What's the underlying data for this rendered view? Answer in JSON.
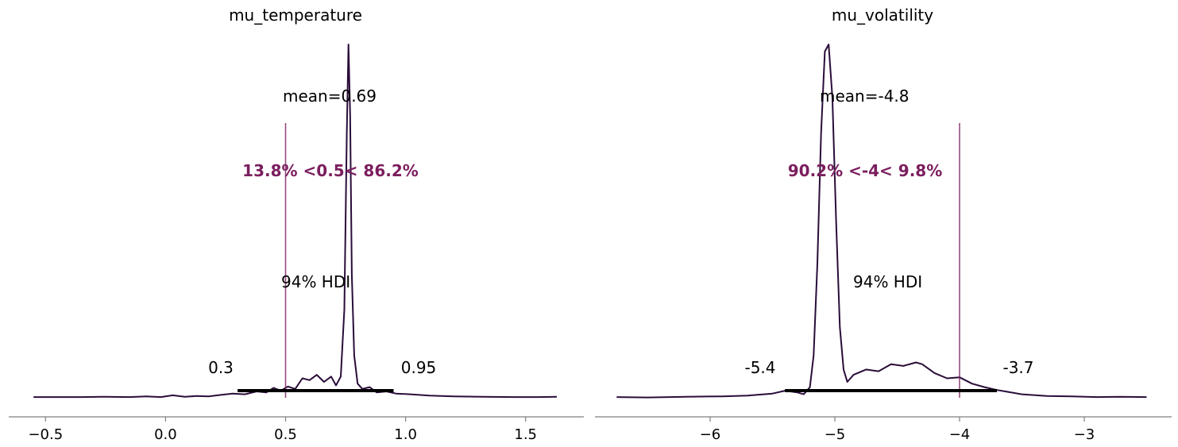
{
  "colors": {
    "kde": "#2a0d3a",
    "ref_line": "#7b1e5e",
    "ref_text": "#7b1e5e",
    "hdi_bar": "#000000"
  },
  "chart_data": [
    {
      "type": "density",
      "title": "mu_temperature",
      "xlim": [
        -0.55,
        1.65
      ],
      "xticks": [
        -0.5,
        0.0,
        0.5,
        1.0,
        1.5
      ],
      "xtick_labels": [
        "−0.5",
        "0.0",
        "0.5",
        "1.0",
        "1.5"
      ],
      "mean_label": "mean=0.69",
      "ref_value": 0.5,
      "ref_label": "13.8% <0.5< 86.2%",
      "hdi_label": "94% HDI",
      "hdi": [
        0.3,
        0.95
      ],
      "hdi_low_label": "0.3",
      "hdi_high_label": "0.95",
      "kde": {
        "x": [
          -0.55,
          -0.45,
          -0.35,
          -0.25,
          -0.15,
          -0.08,
          -0.02,
          0.03,
          0.08,
          0.13,
          0.18,
          0.23,
          0.28,
          0.33,
          0.38,
          0.42,
          0.45,
          0.48,
          0.51,
          0.54,
          0.57,
          0.6,
          0.63,
          0.66,
          0.69,
          0.71,
          0.73,
          0.745,
          0.755,
          0.762,
          0.769,
          0.776,
          0.786,
          0.8,
          0.82,
          0.85,
          0.88,
          0.92,
          0.96,
          1.02,
          1.1,
          1.2,
          1.32,
          1.45,
          1.55,
          1.63
        ],
        "y": [
          0.002,
          0.002,
          0.002,
          0.003,
          0.002,
          0.004,
          0.002,
          0.007,
          0.003,
          0.005,
          0.004,
          0.008,
          0.012,
          0.01,
          0.018,
          0.015,
          0.028,
          0.02,
          0.032,
          0.025,
          0.055,
          0.05,
          0.065,
          0.045,
          0.06,
          0.035,
          0.06,
          0.25,
          0.75,
          1.0,
          0.8,
          0.35,
          0.12,
          0.04,
          0.025,
          0.03,
          0.015,
          0.018,
          0.012,
          0.01,
          0.006,
          0.004,
          0.003,
          0.002,
          0.002,
          0.003
        ]
      }
    },
    {
      "type": "density",
      "title": "mu_volatility",
      "xlim": [
        -6.75,
        -2.5
      ],
      "xticks": [
        -6,
        -5,
        -4,
        -3
      ],
      "xtick_labels": [
        "−6",
        "−5",
        "−4",
        "−3"
      ],
      "mean_label": "mean=-4.8",
      "ref_value": -4,
      "ref_label": "90.2% <-4< 9.8%",
      "hdi_label": "94% HDI",
      "hdi": [
        -5.4,
        -3.7
      ],
      "hdi_low_label": "-5.4",
      "hdi_high_label": "-3.7",
      "kde": {
        "x": [
          -6.75,
          -6.5,
          -6.2,
          -5.9,
          -5.7,
          -5.5,
          -5.4,
          -5.3,
          -5.25,
          -5.2,
          -5.17,
          -5.14,
          -5.11,
          -5.08,
          -5.05,
          -5.02,
          -4.99,
          -4.96,
          -4.93,
          -4.9,
          -4.85,
          -4.75,
          -4.65,
          -4.55,
          -4.45,
          -4.35,
          -4.3,
          -4.2,
          -4.1,
          -4.0,
          -3.9,
          -3.8,
          -3.7,
          -3.5,
          -3.3,
          -3.1,
          -2.9,
          -2.7,
          -2.5
        ],
        "y": [
          0.002,
          0.001,
          0.003,
          0.004,
          0.006,
          0.012,
          0.02,
          0.015,
          0.01,
          0.03,
          0.12,
          0.38,
          0.75,
          0.98,
          1.0,
          0.85,
          0.5,
          0.2,
          0.08,
          0.045,
          0.065,
          0.08,
          0.075,
          0.095,
          0.09,
          0.1,
          0.095,
          0.07,
          0.055,
          0.058,
          0.04,
          0.03,
          0.022,
          0.01,
          0.005,
          0.004,
          0.002,
          0.003,
          0.002
        ]
      }
    }
  ]
}
